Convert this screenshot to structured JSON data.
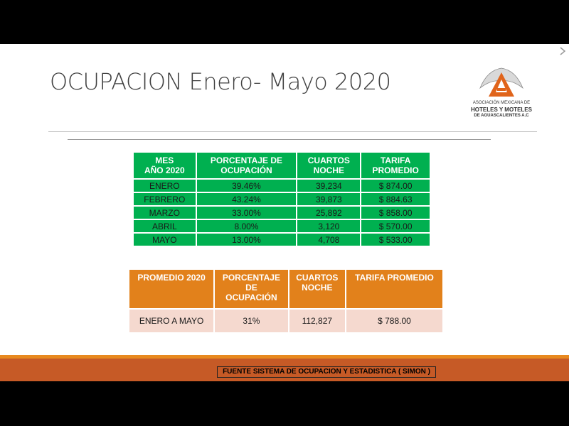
{
  "header": {
    "title": "OCUPACION Enero- Mayo 2020",
    "logo": {
      "lines": [
        "ASOCIACIÓN MEXICANA DE",
        "HOTELES Y MOTELES",
        "DE AGUASCALIENTES A.C"
      ]
    }
  },
  "table_monthly": {
    "columns": [
      "MES\nAÑO 2020",
      "PORCENTAJE DE\nOCUPACIÓN",
      "CUARTOS\nNOCHE",
      "TARIFA\nPROMEDIO"
    ],
    "rows": [
      [
        "ENERO",
        "39.46%",
        "39,234",
        "$ 874.00"
      ],
      [
        "FEBRERO",
        "43.24%",
        "39,873",
        "$ 884.63"
      ],
      [
        "MARZO",
        "33.00%",
        "25,892",
        "$ 858.00"
      ],
      [
        "ABRIL",
        "8.00%",
        "3,120",
        "$ 570.00"
      ],
      [
        "MAYO",
        "13.00%",
        "4,708",
        "$ 533.00"
      ]
    ]
  },
  "table_summary": {
    "columns": [
      "PROMEDIO 2020",
      "PORCENTAJE\nDE\nOCUPACIÓN",
      "CUARTOS\nNOCHE",
      "TARIFA PROMEDIO"
    ],
    "rows": [
      [
        "ENERO A MAYO",
        "31%",
        "112,827",
        "$ 788.00"
      ]
    ]
  },
  "footer": {
    "source": "FUENTE SISTEMA DE OCUPACION Y ESTADISTICA ( SIMON )"
  }
}
